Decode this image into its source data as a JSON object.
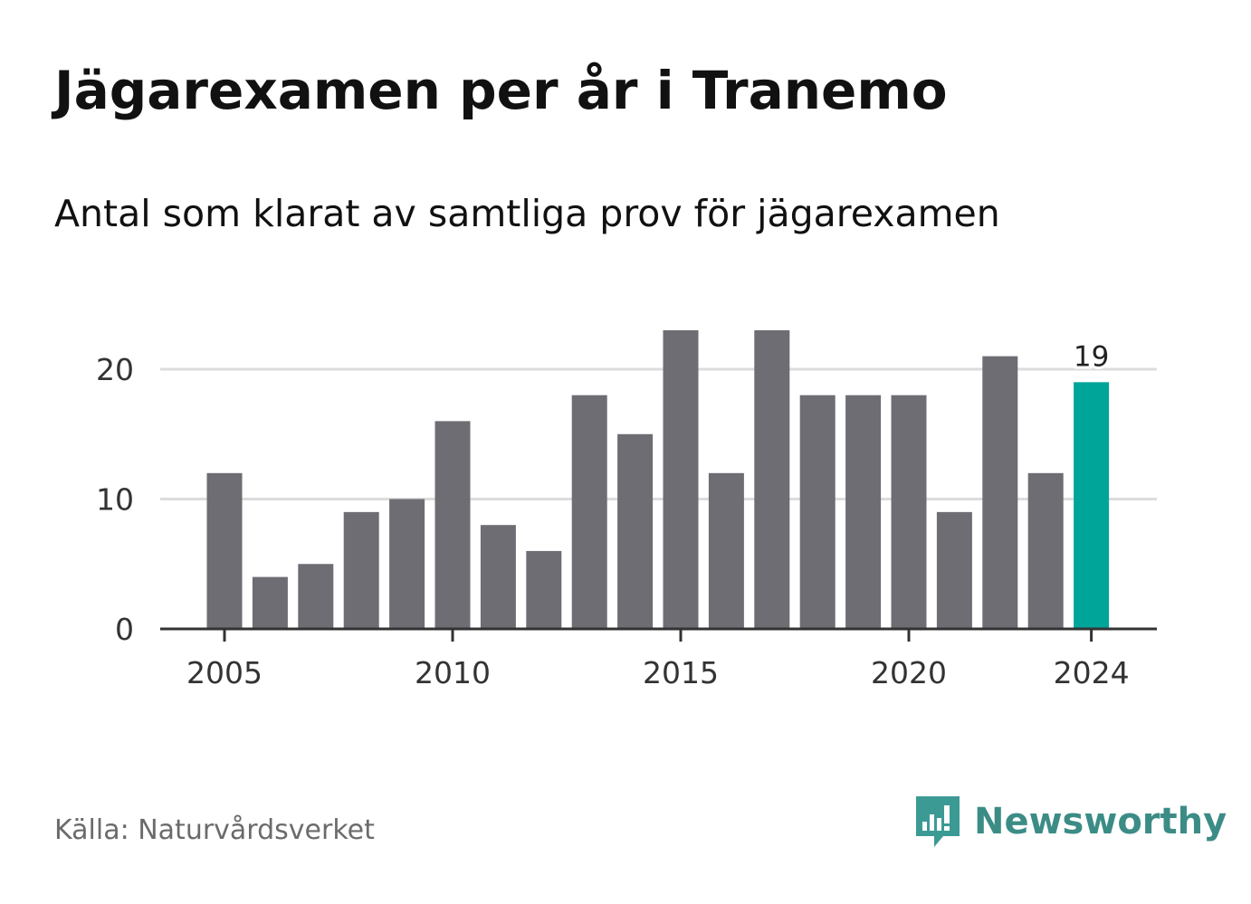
{
  "title": "Jägarexamen per år i Tranemo",
  "subtitle": "Antal som klarat av samtliga prov för jägarexamen",
  "source": "Källa: Naturvårdsverket",
  "brand": {
    "name": "Newsworthy",
    "icon": "newsworthy-logo-icon",
    "color": "#3c9a94"
  },
  "colors": {
    "bar": "#6e6d73",
    "highlight": "#00a599",
    "grid": "#dcdcdc",
    "axis": "#333333"
  },
  "chart_data": {
    "type": "bar",
    "x": [
      2005,
      2006,
      2007,
      2008,
      2009,
      2010,
      2011,
      2012,
      2013,
      2014,
      2015,
      2016,
      2017,
      2018,
      2019,
      2020,
      2021,
      2022,
      2023,
      2024
    ],
    "values": [
      12,
      4,
      5,
      9,
      10,
      16,
      8,
      6,
      18,
      15,
      23,
      12,
      23,
      18,
      18,
      18,
      9,
      21,
      12,
      19
    ],
    "xticks": [
      2005,
      2010,
      2015,
      2020,
      2024
    ],
    "yticks": [
      0,
      10,
      20
    ],
    "ylim": [
      0,
      24
    ],
    "grid": true,
    "highlight": {
      "x": 2024,
      "label": "19"
    },
    "title": "Jägarexamen per år i Tranemo",
    "subtitle": "Antal som klarat av samtliga prov för jägarexamen"
  }
}
